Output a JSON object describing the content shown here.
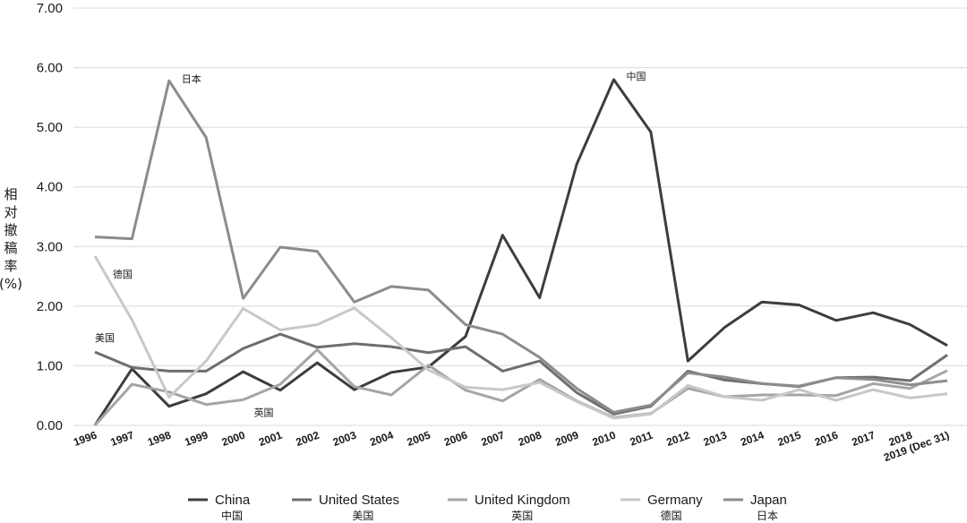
{
  "chart_data": {
    "type": "line",
    "ylabel_chars": [
      "相",
      "对",
      "撤",
      "稿",
      "率",
      "(%)"
    ],
    "ylim": [
      0,
      7
    ],
    "y_ticks": [
      "0.00",
      "1.00",
      "2.00",
      "3.00",
      "4.00",
      "5.00",
      "6.00",
      "7.00"
    ],
    "categories": [
      "1996",
      "1997",
      "1998",
      "1999",
      "2000",
      "2001",
      "2002",
      "2003",
      "2004",
      "2005",
      "2006",
      "2007",
      "2008",
      "2009",
      "2010",
      "2011",
      "2012",
      "2013",
      "2014",
      "2015",
      "2016",
      "2017",
      "2018",
      "2019 (Dec 31)"
    ],
    "grid": true,
    "legend_position": "bottom",
    "series": [
      {
        "name": "China",
        "name_zh": "中国",
        "color": "#3d3d3d",
        "values": [
          0.0,
          0.95,
          0.32,
          0.53,
          0.9,
          0.59,
          1.05,
          0.6,
          0.89,
          0.98,
          1.49,
          3.19,
          2.14,
          4.38,
          5.8,
          4.92,
          1.08,
          1.65,
          2.07,
          2.02,
          1.76,
          1.89,
          1.69,
          1.34
        ]
      },
      {
        "name": "United States",
        "name_zh": "美国",
        "color": "#6e6e6e",
        "values": [
          1.23,
          0.97,
          0.91,
          0.91,
          1.29,
          1.53,
          1.31,
          1.37,
          1.32,
          1.22,
          1.32,
          0.91,
          1.08,
          0.55,
          0.19,
          0.32,
          0.91,
          0.76,
          0.7,
          0.65,
          0.8,
          0.81,
          0.75,
          1.18
        ]
      },
      {
        "name": "United Kingdom",
        "name_zh": "英国",
        "color": "#a5a5a5",
        "values": [
          0.0,
          0.69,
          0.56,
          0.35,
          0.43,
          0.69,
          1.27,
          0.65,
          0.51,
          1.01,
          0.59,
          0.41,
          0.77,
          0.41,
          0.13,
          0.2,
          0.62,
          0.48,
          0.51,
          0.51,
          0.5,
          0.7,
          0.62,
          0.92
        ]
      },
      {
        "name": "Germany",
        "name_zh": "德国",
        "color": "#c8c8c8",
        "values": [
          2.84,
          1.77,
          0.47,
          1.08,
          1.96,
          1.6,
          1.69,
          1.97,
          1.47,
          0.93,
          0.64,
          0.6,
          0.72,
          0.4,
          0.12,
          0.19,
          0.67,
          0.48,
          0.42,
          0.6,
          0.42,
          0.6,
          0.46,
          0.53
        ]
      },
      {
        "name": "Japan",
        "name_zh": "日本",
        "color": "#8c8c8c",
        "values": [
          3.16,
          3.13,
          5.78,
          4.83,
          2.13,
          2.99,
          2.92,
          2.07,
          2.33,
          2.27,
          1.69,
          1.53,
          1.14,
          0.62,
          0.22,
          0.34,
          0.88,
          0.81,
          0.7,
          0.66,
          0.8,
          0.77,
          0.68,
          0.75
        ]
      }
    ],
    "annotations": [
      {
        "text": "日本",
        "x": "1998",
        "y": 5.78,
        "dx": 14,
        "dy": 2
      },
      {
        "text": "中国",
        "x": "2010",
        "y": 5.8,
        "dx": 14,
        "dy": 0
      },
      {
        "text": "德国",
        "x": "1996",
        "y": 2.84,
        "dx": 20,
        "dy": 24
      },
      {
        "text": "美国",
        "x": "1996",
        "y": 1.23,
        "dx": 0,
        "dy": -12
      },
      {
        "text": "英国",
        "x": "2000",
        "y": 0.43,
        "dx": 12,
        "dy": 18
      }
    ]
  }
}
